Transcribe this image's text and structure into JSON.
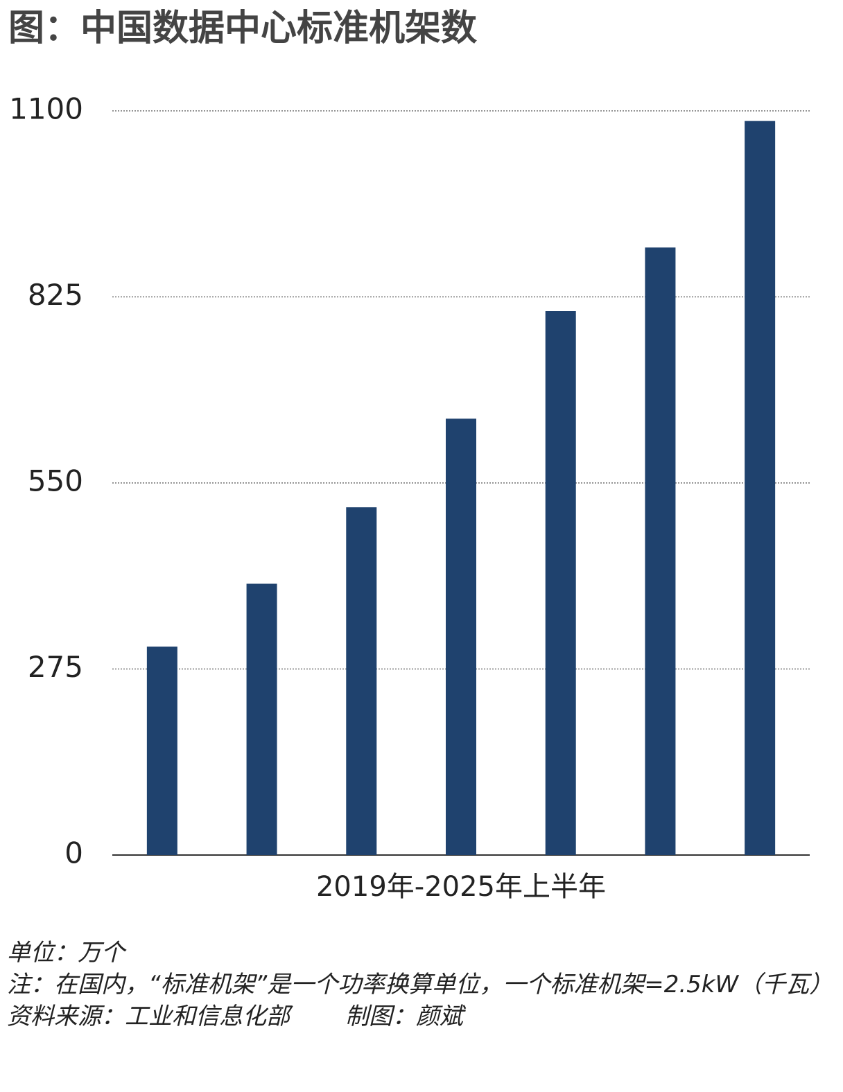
{
  "chart_data": {
    "type": "bar",
    "title": "图：中国数据中心标准机架数",
    "x_label": "2019年-2025年上半年",
    "categories": [
      null,
      null,
      null,
      null,
      null,
      null,
      null
    ],
    "values": [
      308,
      401,
      514,
      645,
      804,
      898,
      1085
    ],
    "color": "#1f426e",
    "ylim": [
      0,
      1100
    ],
    "yticks": [
      0,
      275,
      550,
      825,
      1100
    ],
    "grid": true,
    "notes": [
      "单位：万个",
      "注：在国内，“标准机架”是一个功率换算单位，一个标准机架=2.5kW（千瓦）"
    ],
    "source": "资料来源：工业和信息化部",
    "credit": "制图：颜斌"
  }
}
